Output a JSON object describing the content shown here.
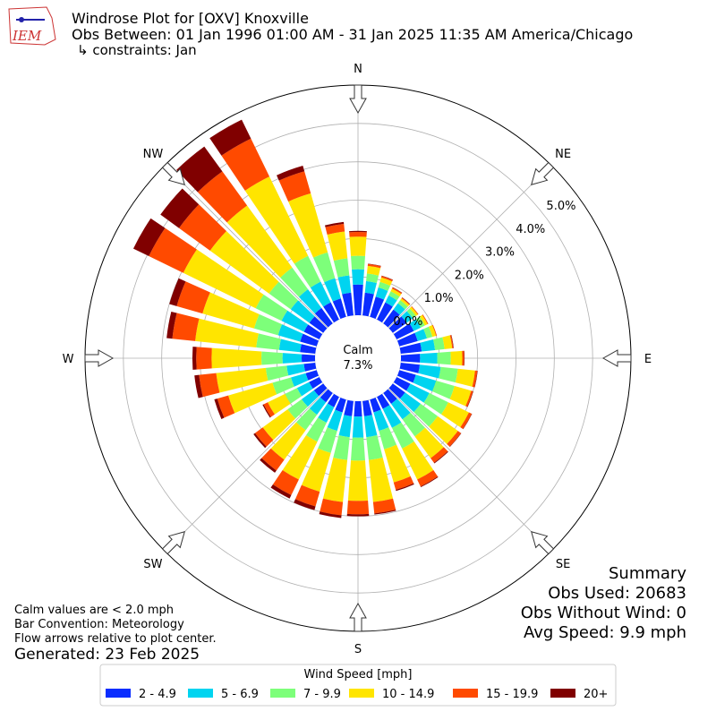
{
  "chart_data": {
    "type": "windrose",
    "title": "Windrose Plot for [OXV] Knoxville",
    "subtitle": "Obs Between: 01 Jan 1996 01:00 AM - 31 Jan 2025 11:35 AM America/Chicago",
    "constraints": "↳ constraints: Jan",
    "logo_text": "IEM",
    "x": [
      0,
      10,
      20,
      30,
      40,
      50,
      60,
      70,
      80,
      90,
      100,
      110,
      120,
      130,
      140,
      150,
      160,
      170,
      180,
      190,
      200,
      210,
      220,
      230,
      240,
      250,
      260,
      270,
      280,
      290,
      300,
      310,
      320,
      330,
      340,
      350
    ],
    "series": [
      {
        "name": "2 - 4.9",
        "color": "#0a2dff",
        "values": [
          0.8,
          0.6,
          0.55,
          0.5,
          0.45,
          0.45,
          0.5,
          0.5,
          0.55,
          0.5,
          0.5,
          0.45,
          0.4,
          0.4,
          0.35,
          0.35,
          0.35,
          0.4,
          0.4,
          0.4,
          0.35,
          0.3,
          0.3,
          0.3,
          0.3,
          0.3,
          0.3,
          0.35,
          0.4,
          0.45,
          0.45,
          0.45,
          0.5,
          0.5,
          0.5,
          0.6
        ]
      },
      {
        "name": "5 - 6.9",
        "color": "#00d4f0",
        "values": [
          0.4,
          0.3,
          0.25,
          0.2,
          0.2,
          0.2,
          0.2,
          0.25,
          0.35,
          0.45,
          0.55,
          0.55,
          0.55,
          0.5,
          0.5,
          0.55,
          0.5,
          0.55,
          0.55,
          0.55,
          0.5,
          0.45,
          0.4,
          0.4,
          0.35,
          0.4,
          0.45,
          0.5,
          0.55,
          0.6,
          0.65,
          0.6,
          0.6,
          0.6,
          0.55,
          0.45
        ]
      },
      {
        "name": "7 - 9.9",
        "color": "#7dff7a",
        "values": [
          0.35,
          0.2,
          0.15,
          0.12,
          0.1,
          0.1,
          0.12,
          0.15,
          0.25,
          0.35,
          0.45,
          0.5,
          0.55,
          0.55,
          0.55,
          0.6,
          0.5,
          0.6,
          0.6,
          0.6,
          0.6,
          0.55,
          0.5,
          0.45,
          0.35,
          0.5,
          0.55,
          0.55,
          0.6,
          0.65,
          0.75,
          0.7,
          0.7,
          0.75,
          0.7,
          0.45
        ]
      },
      {
        "name": "10 - 14.9",
        "color": "#ffe500",
        "values": [
          0.5,
          0.2,
          0.12,
          0.08,
          0.06,
          0.06,
          0.08,
          0.1,
          0.2,
          0.3,
          0.45,
          0.45,
          0.6,
          0.65,
          0.7,
          0.9,
          0.9,
          1.1,
          1.05,
          1.1,
          1.05,
          1.1,
          0.95,
          0.8,
          0.5,
          1.2,
          1.3,
          1.3,
          1.6,
          1.4,
          2.1,
          1.9,
          2.0,
          2.3,
          1.6,
          0.7
        ]
      },
      {
        "name": "15 - 19.9",
        "color": "#ff4a00",
        "values": [
          0.12,
          0.05,
          0.04,
          0.03,
          0.02,
          0.02,
          0.02,
          0.02,
          0.03,
          0.05,
          0.06,
          0.05,
          0.08,
          0.1,
          0.15,
          0.2,
          0.2,
          0.3,
          0.35,
          0.35,
          0.4,
          0.45,
          0.35,
          0.25,
          0.12,
          0.3,
          0.45,
          0.4,
          0.6,
          0.7,
          1.0,
          1.0,
          1.1,
          1.1,
          0.6,
          0.2
        ]
      },
      {
        "name": "20+",
        "color": "#800000",
        "values": [
          0.03,
          0.01,
          0.01,
          0.01,
          0.01,
          0,
          0,
          0,
          0.01,
          0.01,
          0.01,
          0.01,
          0.01,
          0.01,
          0.02,
          0.02,
          0.03,
          0.03,
          0.05,
          0.07,
          0.1,
          0.1,
          0.07,
          0.05,
          0.03,
          0.08,
          0.12,
          0.1,
          0.15,
          0.2,
          0.45,
          0.6,
          0.8,
          0.55,
          0.15,
          0.05
        ]
      }
    ],
    "ylim": [
      0,
      6
    ],
    "yticks": [
      {
        "value": 0,
        "label": "0.0%"
      },
      {
        "value": 1,
        "label": "1.0%"
      },
      {
        "value": 2,
        "label": "2.0%"
      },
      {
        "value": 3,
        "label": "3.0%"
      },
      {
        "value": 4,
        "label": "4.0%"
      },
      {
        "value": 5,
        "label": "5.0%"
      }
    ],
    "direction_labels": [
      {
        "value": 0,
        "label": "N"
      },
      {
        "value": 45,
        "label": "NE"
      },
      {
        "value": 90,
        "label": "E"
      },
      {
        "value": 135,
        "label": "SE"
      },
      {
        "value": 180,
        "label": "S"
      },
      {
        "value": 225,
        "label": "SW"
      },
      {
        "value": 270,
        "label": "W"
      },
      {
        "value": 315,
        "label": "NW"
      }
    ],
    "calm": {
      "label": "Calm",
      "value": 7.3,
      "value_label": "7.3%"
    },
    "summary": [
      "Summary",
      "Obs Used: 20683",
      "Obs Without Wind: 0",
      "Avg Speed: 9.9 mph"
    ],
    "notes": [
      "Calm values are < 2.0 mph",
      "Bar Convention: Meteorology",
      "Flow arrows relative to plot center."
    ],
    "generated": "Generated: 23 Feb 2025",
    "legend_title": "Wind Speed [mph]",
    "grid": true
  }
}
